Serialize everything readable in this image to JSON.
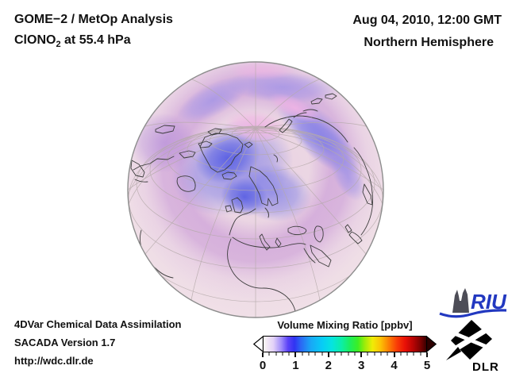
{
  "header": {
    "title": "GOME−2 / MetOp Analysis",
    "species_prefix": "ClONO",
    "species_sub": "2",
    "species_suffix": " at 55.4 hPa",
    "datetime": "Aug 04, 2010, 12:00 GMT",
    "hemisphere": "Northern Hemisphere"
  },
  "footer": {
    "line1": "4DVar Chemical Data Assimilation",
    "line2": "SACADA Version 1.7",
    "line3": "http://wdc.dlr.de"
  },
  "colorbar": {
    "title": "Volume Mixing Ratio [ppbv]",
    "ticks": [
      "0",
      "1",
      "2",
      "3",
      "4",
      "5"
    ],
    "minor_ticks_per_unit": 5,
    "underflow_color": "#ffffff",
    "overflow_color": "#2d0000",
    "gradient": [
      "#fbf7f3 0%",
      "#e3d2f8 6%",
      "#9f8cfa 11%",
      "#5b42f8 15%",
      "#3033f2 19%",
      "#2b68f4 23%",
      "#19a7f6 29%",
      "#07ccf6 36%",
      "#06e4e0 42%",
      "#0ceea6 48%",
      "#1cee5e 53%",
      "#3cee24 58%",
      "#98ec0a 62%",
      "#f0ec06 67%",
      "#fcc105 72%",
      "#fc7e04 77%",
      "#f93c06 82%",
      "#e91006 87%",
      "#b80404 92%",
      "#730101 97%",
      "#3a0001 100%"
    ]
  },
  "logos": {
    "riu_text": "RIU",
    "dlr_text": "DLR",
    "riu_color": "#2238c0",
    "dlr_color": "#000000"
  }
}
